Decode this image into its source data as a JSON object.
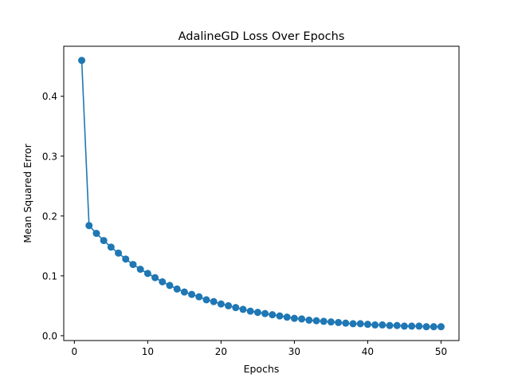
{
  "chart_data": {
    "type": "line",
    "title": "AdalineGD Loss Over Epochs",
    "xlabel": "Epochs",
    "ylabel": "Mean Squared Error",
    "xlim": [
      -1.45,
      52.45
    ],
    "ylim": [
      -0.0081,
      0.4836
    ],
    "xticks": [
      0,
      10,
      20,
      30,
      40,
      50
    ],
    "yticks": [
      0.0,
      0.1,
      0.2,
      0.3,
      0.4
    ],
    "xtick_labels": [
      "0",
      "10",
      "20",
      "30",
      "40",
      "50"
    ],
    "ytick_labels": [
      "0.0",
      "0.1",
      "0.2",
      "0.3",
      "0.4"
    ],
    "grid": false,
    "marker": "circle",
    "series": [
      {
        "color": "#1f77b4",
        "x": [
          1,
          2,
          3,
          4,
          5,
          6,
          7,
          8,
          9,
          10,
          11,
          12,
          13,
          14,
          15,
          16,
          17,
          18,
          19,
          20,
          21,
          22,
          23,
          24,
          25,
          26,
          27,
          28,
          29,
          30,
          31,
          32,
          33,
          34,
          35,
          36,
          37,
          38,
          39,
          40,
          41,
          42,
          43,
          44,
          45,
          46,
          47,
          48,
          49,
          50
        ],
        "y": [
          0.46,
          0.184,
          0.171,
          0.159,
          0.148,
          0.138,
          0.128,
          0.119,
          0.111,
          0.104,
          0.097,
          0.09,
          0.084,
          0.078,
          0.073,
          0.069,
          0.065,
          0.06,
          0.057,
          0.053,
          0.05,
          0.047,
          0.044,
          0.041,
          0.039,
          0.037,
          0.035,
          0.033,
          0.031,
          0.029,
          0.028,
          0.026,
          0.025,
          0.024,
          0.023,
          0.022,
          0.021,
          0.02,
          0.02,
          0.019,
          0.018,
          0.018,
          0.017,
          0.017,
          0.016,
          0.016,
          0.016,
          0.015,
          0.015,
          0.015
        ]
      }
    ]
  }
}
